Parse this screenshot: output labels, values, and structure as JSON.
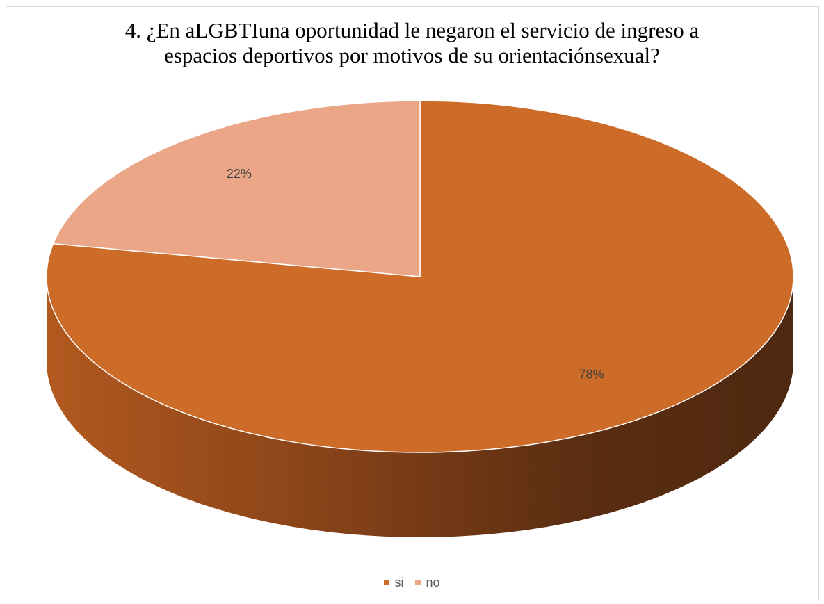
{
  "chart_data": {
    "type": "pie",
    "style": "3d",
    "title_lines": [
      "4. ¿En aLGBTIuna oportunidad le negaron el servicio de ingreso a",
      "espacios deportivos por motivos de su orientaciónsexual?"
    ],
    "categories": [
      "si",
      "no"
    ],
    "values": [
      78,
      22
    ],
    "data_labels": [
      "78%",
      "22%"
    ],
    "colors": [
      "#cd6b28",
      "#eba587"
    ],
    "legend_position": "bottom"
  }
}
